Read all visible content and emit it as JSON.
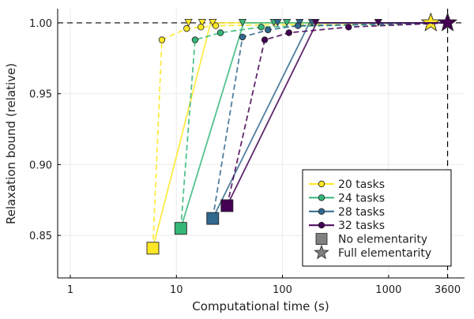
{
  "chart_data": {
    "type": "line",
    "title": "",
    "xlabel": "Computational time (s)",
    "ylabel": "Relaxation bound (relative)",
    "x_scale": "log",
    "xlim": [
      0.76,
      5200
    ],
    "ylim": [
      0.82,
      1.01
    ],
    "x_ticks": [
      1,
      10,
      100,
      1000,
      3600
    ],
    "x_tick_labels": [
      "1",
      "10",
      "100",
      "1000",
      "3600"
    ],
    "y_ticks": [
      0.85,
      0.9,
      0.95,
      1.0
    ],
    "y_tick_labels": [
      "0.85",
      "0.90",
      "0.95",
      "1.00"
    ],
    "grid": true,
    "legend_position": "bottom-right",
    "reference_lines": [
      {
        "orientation": "horizontal",
        "value": 1.0,
        "style": "dashed"
      },
      {
        "orientation": "vertical",
        "value": 3600,
        "style": "dashed"
      }
    ],
    "series": [
      {
        "name": "20 tasks",
        "color": "#FDE725",
        "solid": [
          [
            6.0,
            0.841
          ],
          [
            21.0,
            1.0
          ],
          [
            2500,
            1.0
          ]
        ],
        "dashed": [
          [
            6.0,
            0.841
          ],
          [
            7.3,
            0.988
          ],
          [
            12.5,
            0.996
          ],
          [
            17.0,
            0.997
          ],
          [
            23.5,
            0.998
          ],
          [
            2500,
            1.0
          ]
        ],
        "circles": [
          [
            7.3,
            0.988
          ],
          [
            12.5,
            0.996
          ],
          [
            17.0,
            0.997
          ],
          [
            23.5,
            0.998
          ]
        ],
        "triangles": [
          [
            13.0,
            1.0
          ],
          [
            17.5,
            1.0
          ],
          [
            22.0,
            1.0
          ]
        ],
        "square": [
          6.0,
          0.841
        ],
        "star": [
          2500,
          1.0
        ]
      },
      {
        "name": "24 tasks",
        "color": "#35B779",
        "solid": [
          [
            11.0,
            0.855
          ],
          [
            43.0,
            1.0
          ],
          [
            3600,
            1.0
          ]
        ],
        "dashed": [
          [
            11.0,
            0.855
          ],
          [
            15.0,
            0.988
          ],
          [
            26.0,
            0.993
          ],
          [
            63.0,
            0.997
          ],
          [
            3600,
            1.0
          ]
        ],
        "circles": [
          [
            15.0,
            0.988
          ],
          [
            26.0,
            0.993
          ],
          [
            63.0,
            0.997
          ]
        ],
        "triangles": [
          [
            42.0,
            1.0
          ],
          [
            83.0,
            1.0
          ],
          [
            110.0,
            1.0
          ]
        ],
        "square": [
          11.0,
          0.855
        ],
        "star": null
      },
      {
        "name": "28 tasks",
        "color": "#31688E",
        "solid": [
          [
            22.0,
            0.862
          ],
          [
            180.0,
            1.0
          ],
          [
            3600,
            1.0
          ]
        ],
        "dashed": [
          [
            22.0,
            0.862
          ],
          [
            42.0,
            0.99
          ],
          [
            73.0,
            0.995
          ],
          [
            140.0,
            0.998
          ],
          [
            3600,
            1.0
          ]
        ],
        "circles": [
          [
            42.0,
            0.99
          ],
          [
            73.0,
            0.995
          ],
          [
            140.0,
            0.998
          ]
        ],
        "triangles": [
          [
            90.0,
            1.0
          ],
          [
            145.0,
            1.0
          ],
          [
            190.0,
            1.0
          ]
        ],
        "square": [
          22.0,
          0.862
        ],
        "star": null
      },
      {
        "name": "32 tasks",
        "color": "#440154",
        "solid": [
          [
            30.0,
            0.871
          ],
          [
            210.0,
            1.0
          ],
          [
            3600,
            1.0
          ]
        ],
        "dashed": [
          [
            30.0,
            0.871
          ],
          [
            68.0,
            0.988
          ],
          [
            115.0,
            0.993
          ],
          [
            420.0,
            0.997
          ],
          [
            3600,
            1.0
          ]
        ],
        "circles": [
          [
            68.0,
            0.988
          ],
          [
            115.0,
            0.993
          ],
          [
            420.0,
            0.997
          ]
        ],
        "triangles": [
          [
            205.0,
            1.0
          ],
          [
            800.0,
            1.0
          ]
        ],
        "square": [
          30.0,
          0.871
        ],
        "star": [
          3600,
          1.0
        ]
      }
    ],
    "legend": [
      {
        "label": "20 tasks",
        "kind": "line-circle",
        "color": "#FDE725"
      },
      {
        "label": "24 tasks",
        "kind": "line-circle",
        "color": "#35B779"
      },
      {
        "label": "28 tasks",
        "kind": "line-circle",
        "color": "#31688E"
      },
      {
        "label": "32 tasks",
        "kind": "line-circle",
        "color": "#440154"
      },
      {
        "label": "No elementarity",
        "kind": "square",
        "color": "#808080"
      },
      {
        "label": "Full elementarity",
        "kind": "star",
        "color": "#808080"
      }
    ]
  }
}
